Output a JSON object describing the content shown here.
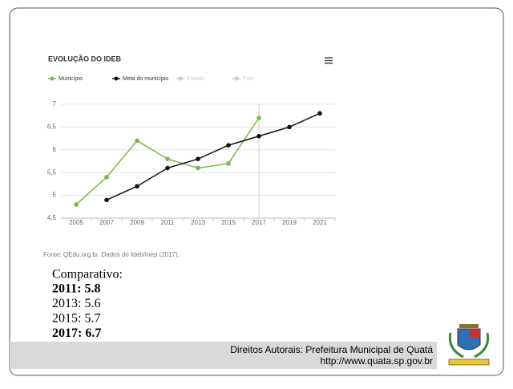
{
  "chart_data": {
    "type": "line",
    "title": "EVOLUÇÃO DO IDEB",
    "categories": [
      "2005",
      "2007",
      "2009",
      "2011",
      "2013",
      "2015",
      "2017",
      "2019",
      "2021"
    ],
    "series": [
      {
        "name": "Município",
        "color": "#7ab648",
        "visible": true,
        "values": [
          4.8,
          5.4,
          6.2,
          5.8,
          5.6,
          5.7,
          6.7,
          null,
          null
        ]
      },
      {
        "name": "Meta do município",
        "color": "#111111",
        "visible": true,
        "values": [
          null,
          4.9,
          5.2,
          5.6,
          5.8,
          6.1,
          6.3,
          6.5,
          6.8
        ]
      },
      {
        "name": "Estado",
        "color": "#cccccc",
        "visible": false,
        "values": [
          null,
          null,
          null,
          null,
          null,
          null,
          null,
          null,
          null
        ]
      },
      {
        "name": "País",
        "color": "#cccccc",
        "visible": false,
        "values": [
          null,
          null,
          null,
          null,
          null,
          null,
          null,
          null,
          null
        ]
      }
    ],
    "ylim": [
      4.5,
      7
    ],
    "yticks": [
      {
        "value": 4.5,
        "label": "4,5"
      },
      5,
      {
        "value": 5.5,
        "label": "5,5"
      },
      6,
      {
        "value": 6.5,
        "label": "6,5"
      },
      7
    ],
    "grid": true,
    "source": "Fonte: QEdu.org.br. Dados do Ideb/Inep (2017)."
  },
  "comparison": {
    "title": "Comparativo:",
    "items": [
      {
        "text": "2011: 5.8",
        "bold": true
      },
      {
        "text": "2013: 5.6",
        "bold": false
      },
      {
        "text": "2015: 5.7",
        "bold": false
      },
      {
        "text": "2017: 6.7",
        "bold": true
      }
    ]
  },
  "footer": {
    "copyright": "Direitos Autorais: Prefeitura Municipal de Quatá",
    "url": "http://www.quata.sp.gov.br"
  }
}
